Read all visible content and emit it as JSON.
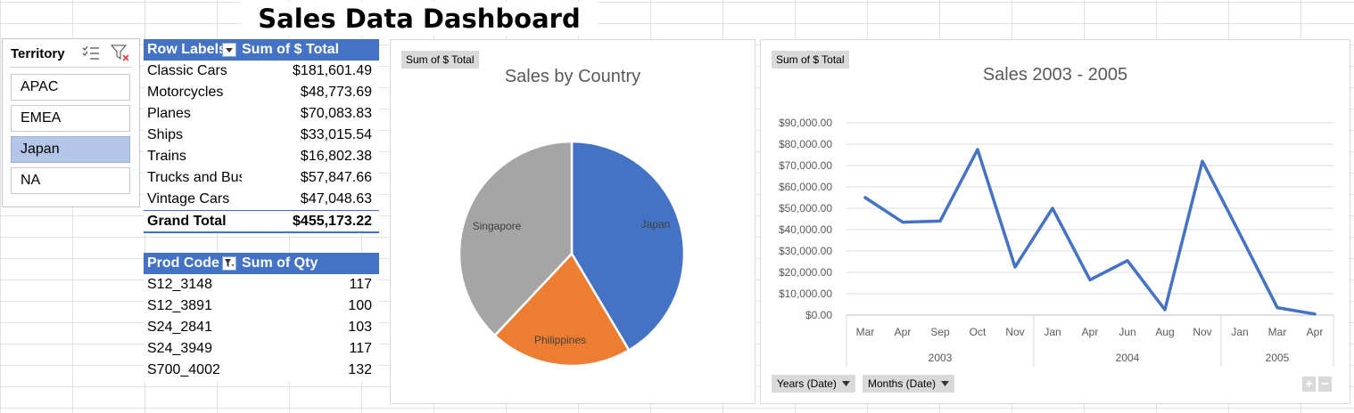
{
  "title": "Sales Data Dashboard",
  "slicer": {
    "header": "Territory",
    "items": [
      {
        "label": "APAC",
        "selected": false
      },
      {
        "label": "EMEA",
        "selected": false
      },
      {
        "label": "Japan",
        "selected": true
      },
      {
        "label": "NA",
        "selected": false
      }
    ]
  },
  "pivot1": {
    "header_rows": "Row Labels",
    "header_values": "Sum of $ Total",
    "rows": [
      {
        "label": "Classic Cars",
        "value": "$181,601.49"
      },
      {
        "label": "Motorcycles",
        "value": "$48,773.69"
      },
      {
        "label": "Planes",
        "value": "$70,083.83"
      },
      {
        "label": "Ships",
        "value": "$33,015.54"
      },
      {
        "label": "Trains",
        "value": "$16,802.38"
      },
      {
        "label": "Trucks and Buses",
        "value": "$57,847.66"
      },
      {
        "label": "Vintage Cars",
        "value": "$47,048.63"
      }
    ],
    "total_label": "Grand Total",
    "total_value": "$455,173.22"
  },
  "pivot2": {
    "header_rows": "Prod Code",
    "header_values": "Sum of Qty",
    "rows": [
      {
        "label": "S12_3148",
        "value": "117"
      },
      {
        "label": "S12_3891",
        "value": "100"
      },
      {
        "label": "S24_2841",
        "value": "103"
      },
      {
        "label": "S24_3949",
        "value": "117"
      },
      {
        "label": "S700_4002",
        "value": "132"
      }
    ]
  },
  "pie_field_button": "Sum of $ Total",
  "line_field_button": "Sum of $ Total",
  "line_filters": [
    "Years (Date)",
    "Months (Date)"
  ],
  "zoom_buttons": [
    "+",
    "−"
  ],
  "colors": {
    "pivot_header": "#4472c4",
    "slicer_selected": "#b4c6e7",
    "series_blue": "#4472c4",
    "series_orange": "#ed7d31",
    "series_gray": "#a5a5a5"
  },
  "chart_data": [
    {
      "type": "pie",
      "title": "Sales by Country",
      "slices": [
        {
          "label": "Japan",
          "value": 41.5,
          "color": "#4472c4"
        },
        {
          "label": "Philippines",
          "value": 20.5,
          "color": "#ed7d31"
        },
        {
          "label": "Singapore",
          "value": 38.0,
          "color": "#a5a5a5"
        }
      ]
    },
    {
      "type": "line",
      "title": "Sales 2003 - 2005",
      "ylim": [
        0,
        90000
      ],
      "yticks": [
        "$0.00",
        "$10,000.00",
        "$20,000.00",
        "$30,000.00",
        "$40,000.00",
        "$50,000.00",
        "$60,000.00",
        "$70,000.00",
        "$80,000.00",
        "$90,000.00"
      ],
      "x": [
        "Mar",
        "Apr",
        "Sep",
        "Oct",
        "Nov",
        "Jan",
        "Apr",
        "Jun",
        "Aug",
        "Nov",
        "Jan",
        "Mar",
        "Apr"
      ],
      "x_groups": [
        {
          "label": "2003",
          "count": 5
        },
        {
          "label": "2004",
          "count": 5
        },
        {
          "label": "2005",
          "count": 3
        }
      ],
      "series": [
        {
          "values": [
            55000,
            43500,
            44000,
            77500,
            22500,
            50000,
            16500,
            25500,
            2500,
            72000,
            38000,
            3500,
            500
          ],
          "color": "#4472c4"
        }
      ],
      "grid": true
    }
  ]
}
